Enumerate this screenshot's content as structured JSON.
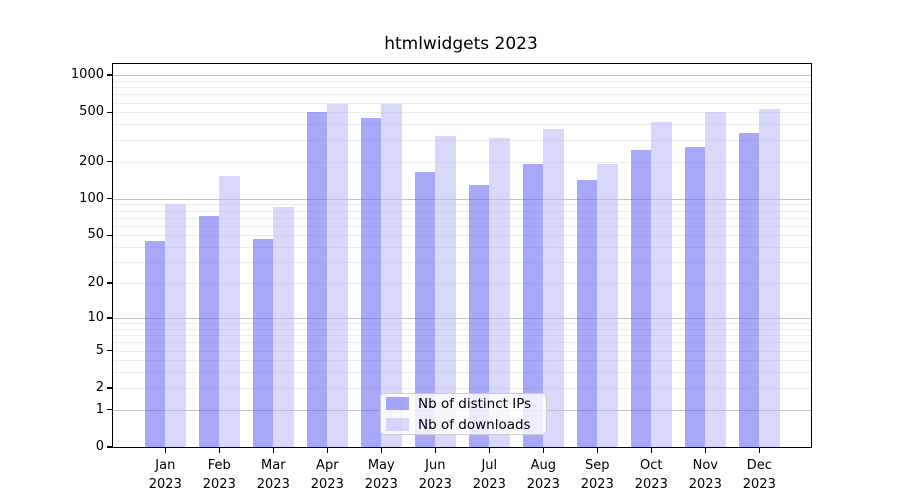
{
  "chart_data": {
    "type": "bar",
    "title": "htmlwidgets 2023",
    "categories": [
      "Jan",
      "Feb",
      "Mar",
      "Apr",
      "May",
      "Jun",
      "Jul",
      "Aug",
      "Sep",
      "Oct",
      "Nov",
      "Dec"
    ],
    "year_label": "2023",
    "series": [
      {
        "name": "Nb of distinct IPs",
        "color": "#6363f3",
        "values": [
          45,
          72,
          47,
          500,
          455,
          165,
          130,
          190,
          143,
          250,
          265,
          340
        ]
      },
      {
        "name": "Nb of downloads",
        "color": "#babaf6",
        "values": [
          90,
          152,
          86,
          590,
          590,
          325,
          310,
          365,
          190,
          415,
          500,
          530
        ]
      }
    ],
    "bar_fill_opacity": 0.56,
    "yscale": "log10(x+1)",
    "ylim": [
      0,
      1230
    ],
    "ytick_labels": [
      1000,
      500,
      200,
      100,
      50,
      20,
      10,
      5,
      2,
      1,
      0
    ],
    "major_gridlines": [
      1,
      10,
      100,
      1000
    ],
    "minor_gridline_decades": [
      1,
      10,
      100
    ],
    "grid": "horizontal",
    "legend_position": "lower center inside plot",
    "xlabel": "",
    "ylabel": ""
  },
  "colors": {
    "series_dark_effective": "#a6a6f8",
    "series_light_effective": "#d8d8f8",
    "major_grid": "#c2c2c2",
    "minor_grid": "#ececec",
    "spine": "#000000",
    "text": "#000000",
    "legend_border": "#cccccc"
  }
}
